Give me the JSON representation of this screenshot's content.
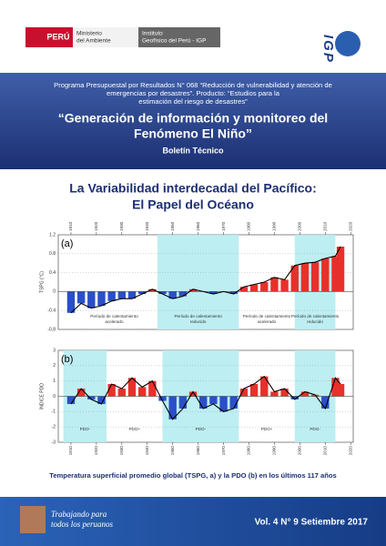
{
  "header": {
    "brand": "PERÚ",
    "ministry": [
      "Ministerio",
      "del Ambiente"
    ],
    "institute": [
      "Instituto",
      "Geofísico del Perú - IGP"
    ],
    "logo": "IGP"
  },
  "program": [
    "Programa Presupuestal por Resultados N° 068 “Reducción de vulnerabilidad y atención de",
    "emergencias por desastres”. Producto: “Estudios para la",
    "estimación del riesgo de desastres”"
  ],
  "title": [
    "“Generación de información y monitoreo del",
    "Fenómeno El Niño”"
  ],
  "subtitle": "Boletín Técnico",
  "article_title": [
    "La Variabilidad interdecadal del Pacífico:",
    "El Papel del Océano"
  ],
  "chart_data": [
    {
      "type": "bar",
      "panel": "(a)",
      "ylabel": "TSPG (°C)",
      "xaxis": "top",
      "pos_color": "#e8302a",
      "neg_color": "#2a4fc8",
      "line_color": "#000000",
      "shade_color": "#bdeef2",
      "x": [
        1910,
        1914,
        1918,
        1922,
        1926,
        1930,
        1934,
        1938,
        1942,
        1946,
        1950,
        1954,
        1958,
        1962,
        1966,
        1970,
        1974,
        1978,
        1982,
        1986,
        1990,
        1994,
        1998,
        2002,
        2006,
        2010,
        2014,
        2016
      ],
      "values": [
        -0.45,
        -0.25,
        -0.35,
        -0.3,
        -0.2,
        -0.15,
        -0.15,
        -0.05,
        0.05,
        -0.05,
        -0.15,
        -0.1,
        0.05,
        0.0,
        -0.05,
        0.0,
        -0.05,
        0.1,
        0.15,
        0.2,
        0.3,
        0.25,
        0.55,
        0.6,
        0.62,
        0.7,
        0.75,
        0.95
      ],
      "xlim": [
        1905,
        2021
      ],
      "xticks": [
        1910,
        1920,
        1930,
        1940,
        1950,
        1960,
        1970,
        1980,
        1990,
        2000,
        2010,
        2020
      ],
      "ylim": [
        -0.8,
        1.2
      ],
      "yticks": [
        -0.8,
        -0.4,
        0.0,
        0.4,
        0.8,
        1.2
      ],
      "periods": [
        {
          "start": 1910,
          "end": 1944,
          "shaded": false,
          "label": [
            "Período de calentamiento",
            "acelerado"
          ]
        },
        {
          "start": 1944,
          "end": 1976,
          "shaded": true,
          "label": [
            "Período de calentamiento",
            "reducido"
          ]
        },
        {
          "start": 1976,
          "end": 1998,
          "shaded": false,
          "label": [
            "Período de calentamiento",
            "acelerado"
          ]
        },
        {
          "start": 1998,
          "end": 2014,
          "shaded": true,
          "label": [
            "Período de calentamiento",
            "reducido"
          ]
        }
      ]
    },
    {
      "type": "bar",
      "panel": "(b)",
      "ylabel": "ÍNDICE PDO",
      "xaxis": "bottom",
      "pos_color": "#e8302a",
      "neg_color": "#2a4fc8",
      "line_color": "#000000",
      "shade_color": "#bdeef2",
      "x": [
        1910,
        1914,
        1918,
        1922,
        1926,
        1930,
        1934,
        1938,
        1942,
        1946,
        1950,
        1954,
        1958,
        1962,
        1966,
        1970,
        1974,
        1978,
        1982,
        1986,
        1990,
        1994,
        1998,
        2002,
        2006,
        2010,
        2014,
        2016
      ],
      "values": [
        -0.5,
        0.5,
        -0.2,
        -0.5,
        0.8,
        0.5,
        1.2,
        0.6,
        1.0,
        -0.3,
        -1.5,
        -0.8,
        0.3,
        -0.8,
        -0.5,
        -1.0,
        -0.8,
        0.5,
        0.8,
        1.3,
        0.3,
        0.5,
        -0.2,
        0.3,
        0.1,
        -0.8,
        1.2,
        0.8
      ],
      "xlim": [
        1905,
        2021
      ],
      "xticks": [
        1910,
        1920,
        1930,
        1940,
        1950,
        1960,
        1970,
        1980,
        1990,
        2000,
        2010,
        2020
      ],
      "ylim": [
        -3,
        3
      ],
      "yticks": [
        -3,
        -2,
        -1,
        0,
        1,
        2,
        3
      ],
      "periods": [
        {
          "start": 1907,
          "end": 1924,
          "shaded": true,
          "label": [
            "PDO-"
          ]
        },
        {
          "start": 1924,
          "end": 1946,
          "shaded": false,
          "label": [
            "PDO+"
          ]
        },
        {
          "start": 1946,
          "end": 1976,
          "shaded": true,
          "label": [
            "PDO-"
          ]
        },
        {
          "start": 1976,
          "end": 1998,
          "shaded": false,
          "label": [
            "PDO+"
          ]
        },
        {
          "start": 1998,
          "end": 2014,
          "shaded": true,
          "label": [
            "PDO-"
          ]
        }
      ]
    }
  ],
  "caption": "Temperatura superficial promedio global (TSPG, a) y la PDO (b) en los últimos 117 años",
  "footer": {
    "slogan": [
      "Trabajando para",
      "todos los peruanos"
    ],
    "issue": "Vol. 4 N° 9  Setiembre 2017"
  }
}
